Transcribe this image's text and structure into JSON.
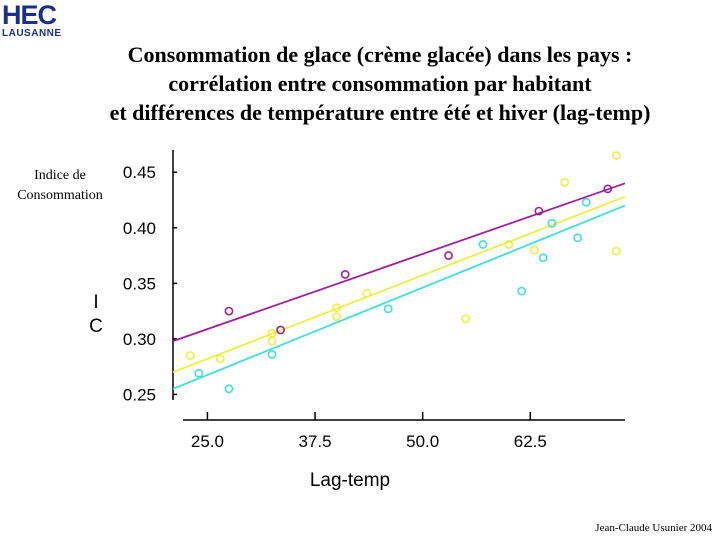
{
  "logo": {
    "line1": "HEC",
    "line2": "LAUSANNE"
  },
  "title": {
    "line1": "Consommation de glace (crème glacée) dans les pays :",
    "line2": "corrélation entre consommation par habitant",
    "line3": "et différences de température entre été et hiver (lag-temp)"
  },
  "ylabel": {
    "line1": "Indice de",
    "line2": "Consommation"
  },
  "footer": "Jean-Claude Usunier 2004",
  "chart_data": {
    "type": "scatter",
    "xlabel": "Lag-temp",
    "ylabel": "I\nC",
    "xlim": [
      21.0,
      73.5
    ],
    "ylim": [
      0.245,
      0.47
    ],
    "x_ticks": [
      "25.0",
      "37.5",
      "50.0",
      "62.5"
    ],
    "x_tick_values": [
      25.0,
      37.5,
      50.0,
      62.5
    ],
    "y_ticks": [
      "0.45",
      "0.40",
      "0.35",
      "0.30",
      "0.25"
    ],
    "y_tick_values": [
      0.45,
      0.4,
      0.35,
      0.3,
      0.25
    ],
    "grid": false,
    "series": [
      {
        "color": "#a020a0",
        "points": [
          [
            27.5,
            0.325
          ],
          [
            33.5,
            0.308
          ],
          [
            41.0,
            0.358
          ],
          [
            53.0,
            0.375
          ],
          [
            63.5,
            0.415
          ],
          [
            71.5,
            0.435
          ]
        ],
        "fit": [
          [
            21.0,
            0.298
          ],
          [
            73.5,
            0.44
          ]
        ]
      },
      {
        "color": "#eeee40",
        "points": [
          [
            23.0,
            0.285
          ],
          [
            26.5,
            0.282
          ],
          [
            32.5,
            0.305
          ],
          [
            32.5,
            0.298
          ],
          [
            40.0,
            0.328
          ],
          [
            40.0,
            0.32
          ],
          [
            43.5,
            0.341
          ],
          [
            55.0,
            0.318
          ],
          [
            60.0,
            0.385
          ],
          [
            63.0,
            0.38
          ],
          [
            66.5,
            0.441
          ],
          [
            72.5,
            0.465
          ],
          [
            72.5,
            0.379
          ]
        ],
        "fit": [
          [
            21.0,
            0.27
          ],
          [
            73.5,
            0.428
          ]
        ]
      },
      {
        "color": "#40e0e0",
        "points": [
          [
            24.0,
            0.269
          ],
          [
            27.5,
            0.255
          ],
          [
            32.5,
            0.286
          ],
          [
            46.0,
            0.327
          ],
          [
            57.0,
            0.385
          ],
          [
            61.5,
            0.343
          ],
          [
            64.0,
            0.373
          ],
          [
            65.0,
            0.404
          ],
          [
            68.0,
            0.391
          ],
          [
            69.0,
            0.423
          ]
        ],
        "fit": [
          [
            21.0,
            0.255
          ],
          [
            73.5,
            0.42
          ]
        ]
      }
    ]
  }
}
